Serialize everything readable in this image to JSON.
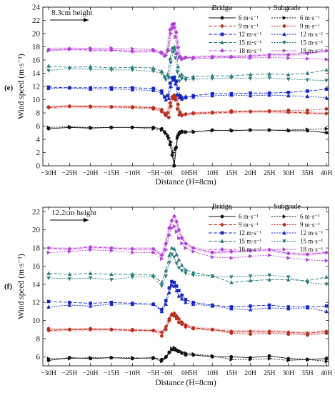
{
  "chart_data": [
    {
      "type": "line",
      "panel_label": "(e)",
      "annotation": "8.3cm height",
      "xlabel": "Distance (H=8cm)",
      "ylabel": "Wind speed (m·s⁻¹)",
      "ylim": [
        0,
        24
      ],
      "yticks": [
        0,
        2,
        4,
        6,
        8,
        10,
        12,
        14,
        16,
        18,
        20,
        22,
        24
      ],
      "x_ticks": [
        {
          "x": -30,
          "label": "−30H"
        },
        {
          "x": -25,
          "label": "−25H"
        },
        {
          "x": -20,
          "label": "−20H"
        },
        {
          "x": -15,
          "label": "−15H"
        },
        {
          "x": -10,
          "label": "−10H"
        },
        {
          "x": -5,
          "label": "−5H"
        },
        {
          "x": -0.01,
          "label": "−0H"
        },
        {
          "x": 0.01,
          "label": "0H"
        },
        {
          "x": 5,
          "label": "5H"
        },
        {
          "x": 10,
          "label": "10H"
        },
        {
          "x": 15,
          "label": "15H"
        },
        {
          "x": 20,
          "label": "20H"
        },
        {
          "x": 25,
          "label": "25H"
        },
        {
          "x": 30,
          "label": "30H"
        },
        {
          "x": 35,
          "label": "35H"
        },
        {
          "x": 40,
          "label": "40H"
        }
      ],
      "legend": {
        "bridge_title": "Bridge",
        "subgrade_title": "Subgrade",
        "labels": [
          "6 m·s⁻¹",
          "9 m·s⁻¹",
          "12 m·s⁻¹",
          "15 m·s⁻¹",
          "18 m·s⁻¹"
        ],
        "colors": [
          "#111111",
          "#b8301f",
          "#1428c8",
          "#2f7f7f",
          "#b040d8"
        ],
        "markers": [
          "circle",
          "diamond",
          "square",
          "triangle",
          "diamond"
        ],
        "subgrade_markers": [
          "triangle-right",
          "circle",
          "triangle",
          "triangle-down",
          "triangle-right"
        ]
      },
      "x_bridge": [
        -30,
        -25,
        -20,
        -15,
        -10,
        -5,
        -3,
        -2.3,
        -1.6,
        -1,
        -0.5,
        0,
        0.5,
        1,
        1.5,
        2,
        3,
        5,
        10,
        15,
        20,
        25,
        30,
        35,
        40
      ],
      "x_subgrade": [
        -30,
        -25,
        -20,
        -15,
        -10,
        -5,
        -3,
        -2,
        -1.3,
        -0.8,
        -0.3,
        0,
        0.3,
        0.8,
        1.3,
        2,
        3,
        5,
        10,
        15,
        20,
        25,
        30,
        35,
        40
      ],
      "series": [
        {
          "group": "Bridge",
          "name": "6 m·s⁻¹",
          "values": [
            5.6,
            5.8,
            5.7,
            5.8,
            5.8,
            5.8,
            5.6,
            5.1,
            4.5,
            3.2,
            1.6,
            0.0,
            2.8,
            4.6,
            5.1,
            5.2,
            5.1,
            5.1,
            5.4,
            5.3,
            5.4,
            5.4,
            5.3,
            5.3,
            5.0
          ]
        },
        {
          "group": "Bridge",
          "name": "9 m·s⁻¹",
          "values": [
            8.8,
            9.0,
            8.9,
            8.9,
            8.9,
            8.8,
            8.5,
            7.9,
            8.0,
            9.5,
            10.4,
            10.7,
            10.5,
            9.3,
            8.1,
            7.6,
            7.8,
            7.9,
            8.0,
            8.1,
            8.2,
            8.2,
            8.1,
            8.0,
            7.9
          ]
        },
        {
          "group": "Bridge",
          "name": "12 m·s⁻¹",
          "values": [
            11.9,
            11.8,
            11.8,
            11.8,
            11.8,
            11.7,
            11.3,
            10.4,
            10.6,
            12.5,
            13.3,
            13.4,
            12.8,
            11.7,
            10.6,
            10.1,
            10.3,
            10.6,
            10.9,
            10.9,
            11.0,
            11.0,
            11.1,
            11.3,
            11.6
          ]
        },
        {
          "group": "Bridge",
          "name": "15 m·s⁻¹",
          "values": [
            15.1,
            14.9,
            15.0,
            14.8,
            14.9,
            14.8,
            14.3,
            13.5,
            13.8,
            16.2,
            17.8,
            18.0,
            17.0,
            15.0,
            13.6,
            13.8,
            13.3,
            13.5,
            13.6,
            13.6,
            13.8,
            13.9,
            13.8,
            14.0,
            14.5
          ]
        },
        {
          "group": "Bridge",
          "name": "18 m·s⁻¹",
          "values": [
            17.6,
            17.7,
            17.5,
            17.5,
            17.3,
            17.4,
            17.0,
            16.6,
            17.5,
            20.6,
            21.4,
            21.5,
            20.2,
            17.9,
            16.5,
            16.2,
            16.4,
            16.4,
            16.5,
            16.5,
            16.6,
            16.8,
            16.8,
            17.0,
            17.4
          ]
        },
        {
          "group": "Subgrade",
          "name": "6 m·s⁻¹",
          "values": [
            5.8,
            5.9,
            5.8,
            5.8,
            5.8,
            5.6,
            5.4,
            4.9,
            4.2,
            3.6,
            2.0,
            0.0,
            2.5,
            4.2,
            4.8,
            5.0,
            5.1,
            5.2,
            5.3,
            5.4,
            5.4,
            5.4,
            5.4,
            5.5,
            5.6
          ]
        },
        {
          "group": "Subgrade",
          "name": "9 m·s⁻¹",
          "values": [
            8.9,
            9.0,
            9.0,
            8.9,
            8.8,
            8.6,
            8.2,
            7.6,
            7.3,
            9.0,
            10.2,
            10.5,
            10.0,
            8.6,
            7.7,
            7.7,
            7.8,
            8.0,
            8.1,
            8.3,
            8.2,
            8.3,
            8.4,
            8.4,
            8.6
          ]
        },
        {
          "group": "Subgrade",
          "name": "12 m·s⁻¹",
          "values": [
            11.7,
            11.8,
            11.6,
            11.6,
            11.5,
            11.4,
            11.0,
            10.0,
            10.2,
            12.0,
            13.0,
            13.1,
            12.4,
            10.8,
            10.3,
            10.4,
            10.5,
            10.4,
            10.6,
            10.7,
            10.6,
            10.7,
            10.6,
            10.5,
            10.3
          ]
        },
        {
          "group": "Subgrade",
          "name": "15 m·s⁻¹",
          "values": [
            14.4,
            14.7,
            14.6,
            14.5,
            14.5,
            14.3,
            14.0,
            13.0,
            13.3,
            15.6,
            17.2,
            17.5,
            16.3,
            14.2,
            12.8,
            13.2,
            13.0,
            13.1,
            13.2,
            13.3,
            13.2,
            13.3,
            13.1,
            13.0,
            12.9
          ]
        },
        {
          "group": "Subgrade",
          "name": "18 m·s⁻¹",
          "values": [
            17.4,
            17.6,
            17.8,
            17.8,
            17.7,
            17.6,
            17.2,
            16.7,
            17.4,
            20.0,
            20.8,
            21.0,
            19.5,
            17.0,
            16.3,
            16.1,
            16.3,
            16.2,
            16.3,
            16.4,
            16.3,
            16.4,
            16.3,
            16.2,
            16.1
          ]
        }
      ]
    },
    {
      "type": "line",
      "panel_label": "(f)",
      "annotation": "12.2cm height",
      "xlabel": "Distance (H=8cm)",
      "ylabel": "Wind speed (m·s⁻¹)",
      "ylim": [
        5,
        22.5
      ],
      "yticks": [
        6,
        8,
        10,
        12,
        14,
        16,
        18,
        20,
        22
      ],
      "x_ticks": [
        {
          "x": -30,
          "label": "−30H"
        },
        {
          "x": -25,
          "label": "−25H"
        },
        {
          "x": -20,
          "label": "−20H"
        },
        {
          "x": -15,
          "label": "−15H"
        },
        {
          "x": -10,
          "label": "−10H"
        },
        {
          "x": -5,
          "label": "−5H"
        },
        {
          "x": -0.01,
          "label": "−0H"
        },
        {
          "x": 0.01,
          "label": "0H"
        },
        {
          "x": 5,
          "label": "5H"
        },
        {
          "x": 10,
          "label": "10H"
        },
        {
          "x": 15,
          "label": "15H"
        },
        {
          "x": 20,
          "label": "20H"
        },
        {
          "x": 25,
          "label": "25H"
        },
        {
          "x": 30,
          "label": "30H"
        },
        {
          "x": 35,
          "label": "35H"
        },
        {
          "x": 40,
          "label": "40H"
        }
      ],
      "legend": {
        "bridge_title": "Bridge",
        "subgrade_title": "Subgrade",
        "labels": [
          "6 m·s⁻¹",
          "9 m·s⁻¹",
          "12 m·s⁻¹",
          "15 m·s⁻¹",
          "18 m·s⁻¹"
        ],
        "colors": [
          "#111111",
          "#b8301f",
          "#1428c8",
          "#2f7f7f",
          "#b040d8"
        ],
        "markers": [
          "circle",
          "diamond",
          "square",
          "triangle",
          "diamond"
        ],
        "subgrade_markers": [
          "triangle-right",
          "circle",
          "triangle",
          "triangle-down",
          "triangle-right"
        ]
      },
      "x_bridge": [
        -30,
        -25,
        -20,
        -15,
        -10,
        -5,
        -3,
        -2,
        -1.2,
        -0.6,
        0,
        0.6,
        1.2,
        2,
        3,
        5,
        10,
        15,
        20,
        25,
        30,
        35,
        40
      ],
      "x_subgrade": [
        -30,
        -25,
        -20,
        -15,
        -10,
        -5,
        -3,
        -2,
        -1.2,
        -0.6,
        0,
        0.6,
        1.2,
        2,
        3,
        5,
        10,
        15,
        20,
        25,
        30,
        35,
        40
      ],
      "series": [
        {
          "group": "Bridge",
          "name": "6 m·s⁻¹",
          "values": [
            5.6,
            5.9,
            5.8,
            5.9,
            5.8,
            5.9,
            5.7,
            6.0,
            6.5,
            6.8,
            6.8,
            6.7,
            6.6,
            6.4,
            6.2,
            6.2,
            6.0,
            6.0,
            5.9,
            6.1,
            5.8,
            5.7,
            5.8
          ]
        },
        {
          "group": "Bridge",
          "name": "9 m·s⁻¹",
          "values": [
            8.9,
            9.0,
            9.0,
            9.0,
            8.9,
            8.9,
            8.7,
            9.3,
            10.2,
            10.7,
            10.8,
            10.5,
            10.2,
            9.8,
            9.5,
            9.2,
            9.0,
            8.8,
            8.8,
            8.8,
            8.7,
            8.6,
            8.8
          ]
        },
        {
          "group": "Bridge",
          "name": "12 m·s⁻¹",
          "values": [
            12.1,
            12.0,
            11.9,
            12.0,
            11.9,
            11.8,
            11.2,
            12.2,
            13.6,
            14.3,
            14.2,
            13.8,
            13.3,
            12.8,
            12.3,
            12.0,
            11.7,
            11.5,
            11.6,
            11.7,
            11.5,
            11.5,
            11.6
          ]
        },
        {
          "group": "Bridge",
          "name": "15 m·s⁻¹",
          "values": [
            15.2,
            15.1,
            15.2,
            15.1,
            15.1,
            15.0,
            14.2,
            15.5,
            17.2,
            18.0,
            17.9,
            17.3,
            16.7,
            16.1,
            15.6,
            15.3,
            14.9,
            14.2,
            14.4,
            14.5,
            14.5,
            14.4,
            14.8
          ]
        },
        {
          "group": "Bridge",
          "name": "18 m·s⁻¹",
          "values": [
            18.0,
            17.9,
            18.1,
            18.0,
            17.9,
            17.9,
            17.2,
            18.5,
            20.2,
            21.0,
            21.5,
            20.9,
            20.0,
            19.1,
            18.5,
            18.0,
            17.5,
            17.6,
            17.7,
            17.8,
            17.4,
            17.3,
            17.5
          ]
        },
        {
          "group": "Subgrade",
          "name": "6 m·s⁻¹",
          "values": [
            5.8,
            5.8,
            5.9,
            5.9,
            5.9,
            5.8,
            5.5,
            5.9,
            6.4,
            6.9,
            7.0,
            6.8,
            6.6,
            6.5,
            6.4,
            6.3,
            6.1,
            5.7,
            5.7,
            5.8,
            5.6,
            5.7,
            5.5
          ]
        },
        {
          "group": "Subgrade",
          "name": "9 m·s⁻¹",
          "values": [
            9.1,
            9.0,
            9.1,
            9.0,
            9.0,
            8.9,
            8.3,
            9.0,
            10.0,
            10.6,
            10.5,
            10.2,
            9.8,
            9.6,
            9.3,
            9.1,
            9.0,
            8.6,
            8.5,
            8.6,
            8.5,
            8.4,
            8.6
          ]
        },
        {
          "group": "Subgrade",
          "name": "12 m·s⁻¹",
          "values": [
            11.5,
            11.7,
            11.6,
            11.8,
            11.8,
            11.8,
            11.0,
            11.8,
            13.1,
            13.9,
            13.8,
            13.3,
            12.7,
            12.4,
            12.0,
            11.8,
            11.6,
            11.3,
            11.2,
            11.4,
            11.3,
            11.4,
            11.0
          ]
        },
        {
          "group": "Subgrade",
          "name": "15 m·s⁻¹",
          "values": [
            14.7,
            14.6,
            14.7,
            14.5,
            14.8,
            14.8,
            13.8,
            14.9,
            16.4,
            17.3,
            17.0,
            16.3,
            15.8,
            15.5,
            15.2,
            15.0,
            14.9,
            14.8,
            14.9,
            15.0,
            14.8,
            14.2,
            14.0
          ]
        },
        {
          "group": "Subgrade",
          "name": "18 m·s⁻¹",
          "values": [
            17.5,
            17.6,
            17.8,
            17.7,
            17.5,
            17.5,
            16.8,
            17.8,
            19.4,
            20.2,
            20.4,
            19.8,
            19.1,
            18.5,
            18.0,
            17.6,
            17.0,
            16.9,
            17.1,
            17.2,
            16.9,
            16.7,
            16.6
          ]
        }
      ]
    }
  ]
}
